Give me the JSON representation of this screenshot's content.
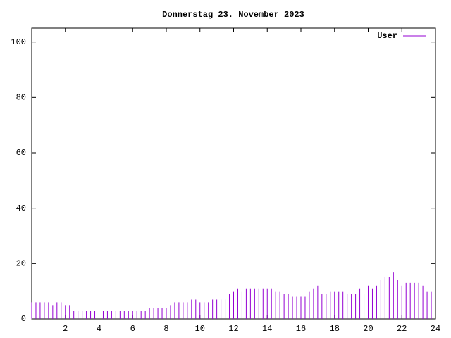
{
  "chart_data": {
    "type": "impulse",
    "title": "Donnerstag 23. November 2023",
    "series": [
      {
        "name": "User",
        "color": "#9400d3",
        "values": [
          6,
          6,
          6,
          6,
          6,
          5,
          6,
          6,
          5,
          5,
          3,
          3,
          3,
          3,
          3,
          3,
          3,
          3,
          3,
          3,
          3,
          3,
          3,
          3,
          3,
          3,
          3,
          3,
          4,
          4,
          4,
          4,
          4,
          5,
          6,
          6,
          6,
          6,
          7,
          7,
          6,
          6,
          6,
          7,
          7,
          7,
          7,
          9,
          10,
          11,
          10,
          11,
          11,
          11,
          11,
          11,
          11,
          11,
          10,
          10,
          9,
          9,
          8,
          8,
          8,
          8,
          10,
          11,
          12,
          9,
          9,
          10,
          10,
          10,
          10,
          9,
          9,
          9,
          11,
          9,
          12,
          11,
          12,
          14,
          15,
          15,
          17,
          14,
          12,
          13,
          13,
          13,
          13,
          12,
          10,
          10
        ]
      }
    ],
    "x": [
      0,
      0.25,
      0.5,
      0.75,
      1,
      1.25,
      1.5,
      1.75,
      2,
      2.25,
      2.5,
      2.75,
      3,
      3.25,
      3.5,
      3.75,
      4,
      4.25,
      4.5,
      4.75,
      5,
      5.25,
      5.5,
      5.75,
      6,
      6.25,
      6.5,
      6.75,
      7,
      7.25,
      7.5,
      7.75,
      8,
      8.25,
      8.5,
      8.75,
      9,
      9.25,
      9.5,
      9.75,
      10,
      10.25,
      10.5,
      10.75,
      11,
      11.25,
      11.5,
      11.75,
      12,
      12.25,
      12.5,
      12.75,
      13,
      13.25,
      13.5,
      13.75,
      14,
      14.25,
      14.5,
      14.75,
      15,
      15.25,
      15.5,
      15.75,
      16,
      16.25,
      16.5,
      16.75,
      17,
      17.25,
      17.5,
      17.75,
      18,
      18.25,
      18.5,
      18.75,
      19,
      19.25,
      19.5,
      19.75,
      20,
      20.25,
      20.5,
      20.75,
      21,
      21.25,
      21.5,
      21.75,
      22,
      22.25,
      22.5,
      22.75,
      23,
      23.25,
      23.5,
      23.75
    ],
    "xlim": [
      0,
      24
    ],
    "xticks": [
      2,
      4,
      6,
      8,
      10,
      12,
      14,
      16,
      18,
      20,
      22,
      24
    ],
    "ylim": [
      0,
      105
    ],
    "yticks": [
      0,
      20,
      40,
      60,
      80,
      100
    ],
    "legend": "top-right"
  }
}
